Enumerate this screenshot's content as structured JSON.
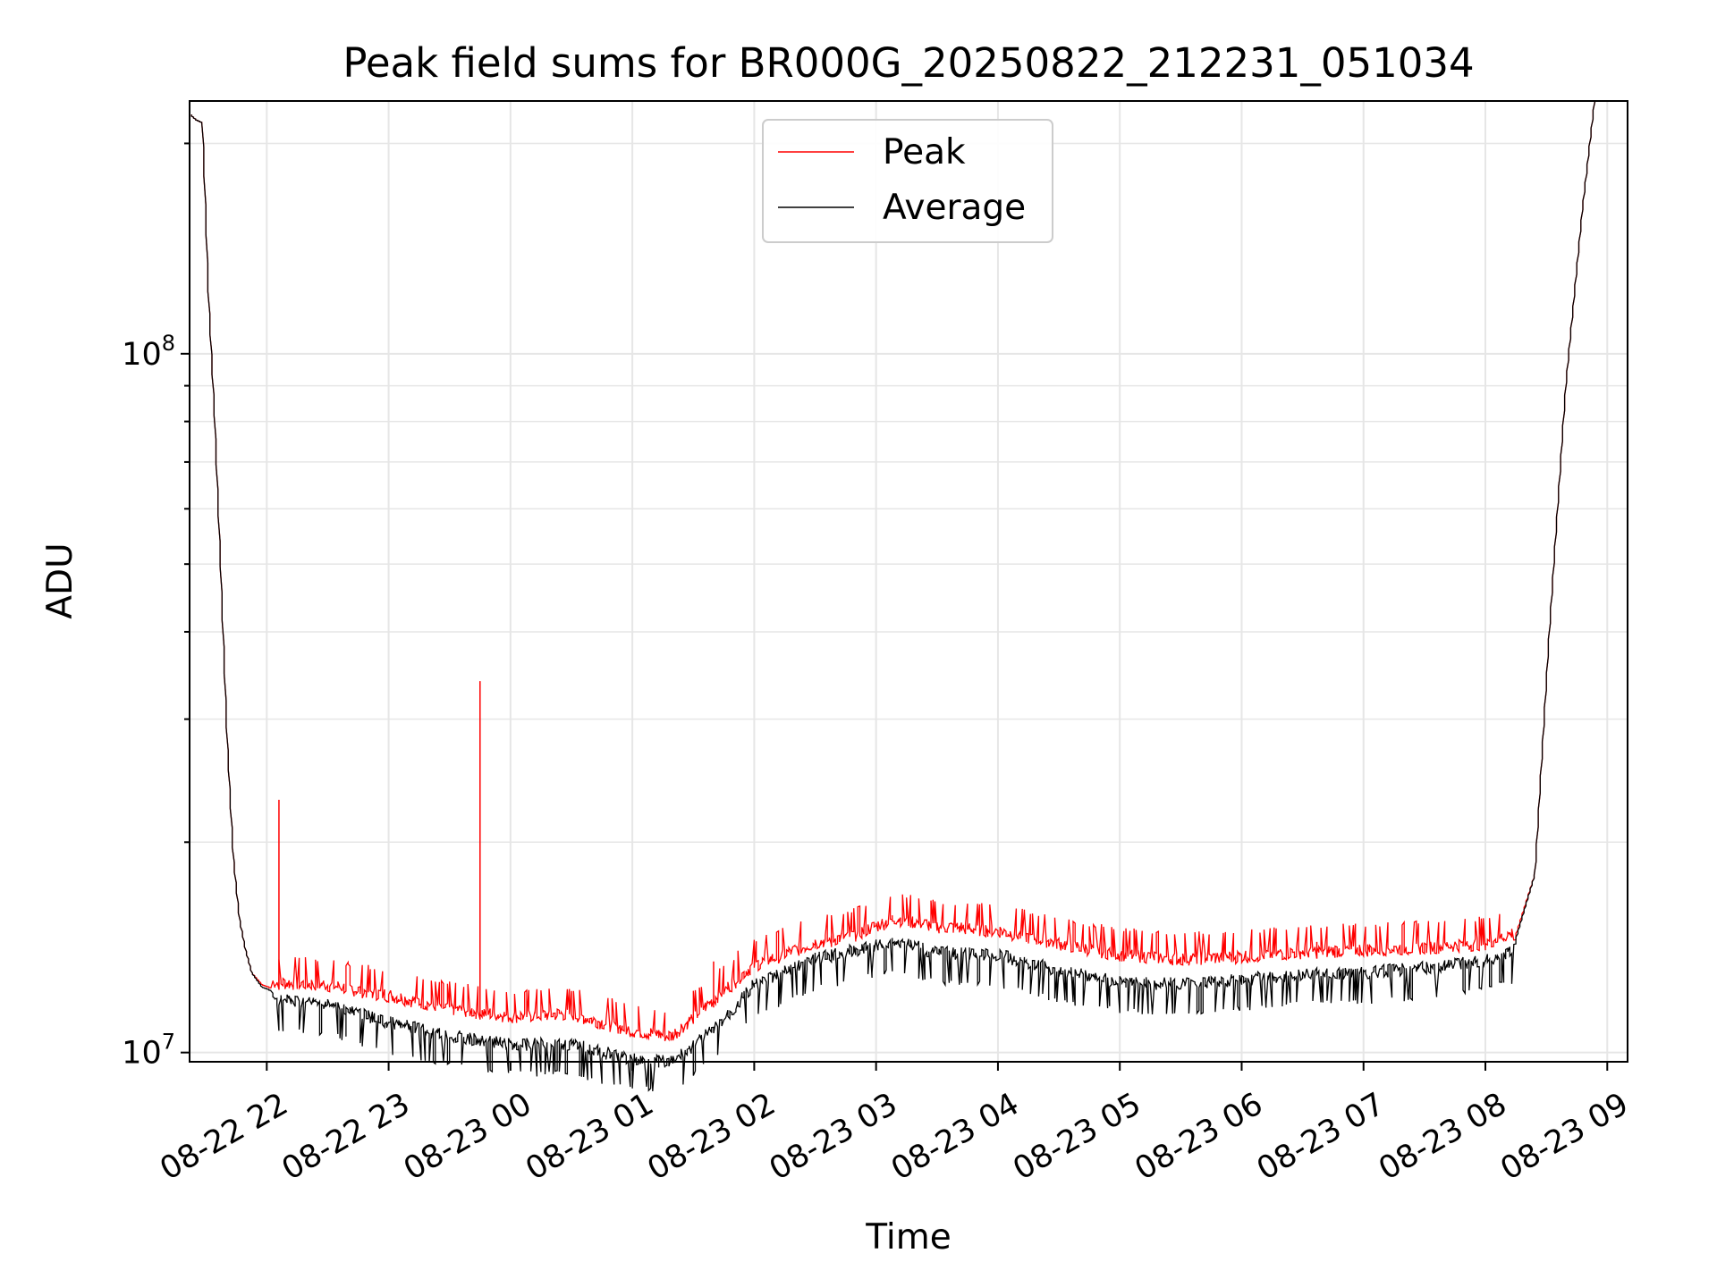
{
  "chart_data": {
    "type": "line",
    "title": "Peak field sums for BR000G_20250822_212231_051034",
    "xlabel": "Time",
    "ylabel": "ADU",
    "yscale": "log",
    "grid": true,
    "legend_position": "upper center",
    "xlim": [
      "2025-08-22 21:22",
      "2025-08-23 09:10"
    ],
    "ylim": [
      9700000,
      230000000
    ],
    "x_tick_labels": [
      "08-22 22",
      "08-22 23",
      "08-23 00",
      "08-23 01",
      "08-23 02",
      "08-23 03",
      "08-23 04",
      "08-23 05",
      "08-23 06",
      "08-23 07",
      "08-23 08",
      "08-23 09"
    ],
    "y_tick_labels": [
      {
        "value": 10000000,
        "base": "10",
        "exp": "7"
      },
      {
        "value": 100000000,
        "base": "10",
        "exp": "8"
      }
    ],
    "series": [
      {
        "name": "Peak",
        "color": "#ff0000",
        "points": [
          [
            "2025-08-22 21:23",
            220000000
          ],
          [
            "2025-08-22 21:26",
            216000000
          ],
          [
            "2025-08-22 21:29",
            214000000
          ],
          [
            "2025-08-22 21:32",
            120000000
          ],
          [
            "2025-08-22 21:35",
            80000000
          ],
          [
            "2025-08-22 21:38",
            48000000
          ],
          [
            "2025-08-22 21:41",
            28000000
          ],
          [
            "2025-08-22 21:44",
            19000000
          ],
          [
            "2025-08-22 21:47",
            15500000
          ],
          [
            "2025-08-22 21:50",
            14000000
          ],
          [
            "2025-08-22 21:53",
            13000000
          ],
          [
            "2025-08-22 21:58",
            12500000
          ],
          [
            "2025-08-22 22:05",
            12300000
          ],
          [
            "2025-08-22 22:30",
            12200000
          ],
          [
            "2025-08-22 23:00",
            11800000
          ],
          [
            "2025-08-22 23:30",
            11300000
          ],
          [
            "2025-08-23 00:00",
            11000000
          ],
          [
            "2025-08-23 00:30",
            11100000
          ],
          [
            "2025-08-23 01:00",
            10500000
          ],
          [
            "2025-08-23 01:20",
            10300000
          ],
          [
            "2025-08-23 01:40",
            11600000
          ],
          [
            "2025-08-23 02:00",
            13000000
          ],
          [
            "2025-08-23 02:30",
            14000000
          ],
          [
            "2025-08-23 02:50",
            14400000
          ],
          [
            "2025-08-23 03:10",
            15200000
          ],
          [
            "2025-08-23 03:30",
            14800000
          ],
          [
            "2025-08-23 04:00",
            14600000
          ],
          [
            "2025-08-23 04:30",
            14000000
          ],
          [
            "2025-08-23 05:00",
            13500000
          ],
          [
            "2025-08-23 05:30",
            13300000
          ],
          [
            "2025-08-23 06:00",
            13400000
          ],
          [
            "2025-08-23 06:30",
            13600000
          ],
          [
            "2025-08-23 07:00",
            13700000
          ],
          [
            "2025-08-23 07:30",
            13800000
          ],
          [
            "2025-08-23 08:00",
            14000000
          ],
          [
            "2025-08-23 08:15",
            14500000
          ],
          [
            "2025-08-23 08:25",
            18000000
          ],
          [
            "2025-08-23 08:32",
            40000000
          ],
          [
            "2025-08-23 08:40",
            90000000
          ],
          [
            "2025-08-23 08:48",
            160000000
          ],
          [
            "2025-08-23 08:54",
            230000000
          ]
        ],
        "spikes": [
          [
            "2025-08-22 22:06",
            23000000
          ],
          [
            "2025-08-22 23:45",
            34000000
          ],
          [
            "2025-08-23 01:40",
            13500000
          ],
          [
            "2025-08-23 02:38",
            14700000
          ],
          [
            "2025-08-23 06:37",
            14400000
          ]
        ]
      },
      {
        "name": "Average",
        "color": "#000000",
        "points": [
          [
            "2025-08-22 21:23",
            220000000
          ],
          [
            "2025-08-22 21:26",
            216000000
          ],
          [
            "2025-08-22 21:29",
            214000000
          ],
          [
            "2025-08-22 21:32",
            120000000
          ],
          [
            "2025-08-22 21:35",
            80000000
          ],
          [
            "2025-08-22 21:38",
            48000000
          ],
          [
            "2025-08-22 21:41",
            28000000
          ],
          [
            "2025-08-22 21:44",
            19000000
          ],
          [
            "2025-08-22 21:47",
            15500000
          ],
          [
            "2025-08-22 21:50",
            14000000
          ],
          [
            "2025-08-22 21:53",
            13000000
          ],
          [
            "2025-08-22 21:58",
            12400000
          ],
          [
            "2025-08-22 22:05",
            12200000
          ],
          [
            "2025-08-22 22:30",
            12000000
          ],
          [
            "2025-08-22 23:00",
            11300000
          ],
          [
            "2025-08-22 23:30",
            10800000
          ],
          [
            "2025-08-23 00:00",
            10500000
          ],
          [
            "2025-08-23 00:30",
            10500000
          ],
          [
            "2025-08-23 01:00",
            10000000
          ],
          [
            "2025-08-23 01:20",
            9900000
          ],
          [
            "2025-08-23 01:40",
            11000000
          ],
          [
            "2025-08-23 02:00",
            12700000
          ],
          [
            "2025-08-23 02:30",
            13900000
          ],
          [
            "2025-08-23 02:50",
            14300000
          ],
          [
            "2025-08-23 03:10",
            14800000
          ],
          [
            "2025-08-23 03:30",
            14200000
          ],
          [
            "2025-08-23 04:00",
            14100000
          ],
          [
            "2025-08-23 04:30",
            13400000
          ],
          [
            "2025-08-23 05:00",
            12900000
          ],
          [
            "2025-08-23 05:30",
            12800000
          ],
          [
            "2025-08-23 06:00",
            13000000
          ],
          [
            "2025-08-23 06:30",
            13200000
          ],
          [
            "2025-08-23 07:00",
            13300000
          ],
          [
            "2025-08-23 07:30",
            13500000
          ],
          [
            "2025-08-23 08:00",
            13800000
          ],
          [
            "2025-08-23 08:15",
            14300000
          ],
          [
            "2025-08-23 08:25",
            18000000
          ],
          [
            "2025-08-23 08:32",
            40000000
          ],
          [
            "2025-08-23 08:40",
            90000000
          ],
          [
            "2025-08-23 08:48",
            160000000
          ],
          [
            "2025-08-23 08:54",
            230000000
          ]
        ]
      }
    ]
  }
}
